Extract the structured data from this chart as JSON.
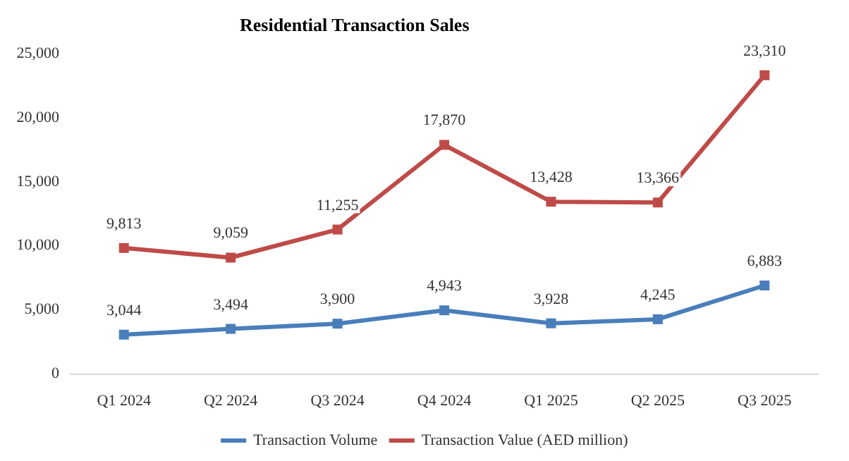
{
  "chart_data": {
    "type": "line",
    "title": "Residential Transaction Sales",
    "categories": [
      "Q1 2024",
      "Q2 2024",
      "Q3 2024",
      "Q4 2024",
      "Q1 2025",
      "Q2 2025",
      "Q3 2025"
    ],
    "series": [
      {
        "name": "Transaction Volume",
        "color": "#4a7ebb",
        "values": [
          3044,
          3494,
          3900,
          4943,
          3928,
          4245,
          6883
        ],
        "value_labels": [
          "3,044",
          "3,494",
          "3,900",
          "4,943",
          "3,928",
          "4,245",
          "6,883"
        ]
      },
      {
        "name": "Transaction Value (AED million)",
        "color": "#be4b48",
        "values": [
          9813,
          9059,
          11255,
          17870,
          13428,
          13366,
          23310
        ],
        "value_labels": [
          "9,813",
          "9,059",
          "11,255",
          "17,870",
          "13,428",
          "13,366",
          "23,310"
        ]
      }
    ],
    "ylim": [
      0,
      25000
    ],
    "yticks": [
      0,
      {
        "value": 5000,
        "label": "5,000"
      },
      {
        "value": 10000,
        "label": "10,000"
      },
      {
        "value": 15000,
        "label": "15,000"
      },
      {
        "value": 20000,
        "label": "20,000"
      },
      {
        "value": 25000,
        "label": "25,000"
      }
    ],
    "grid": false,
    "legend": "bottom",
    "marker": "square",
    "line_style": "solid"
  }
}
